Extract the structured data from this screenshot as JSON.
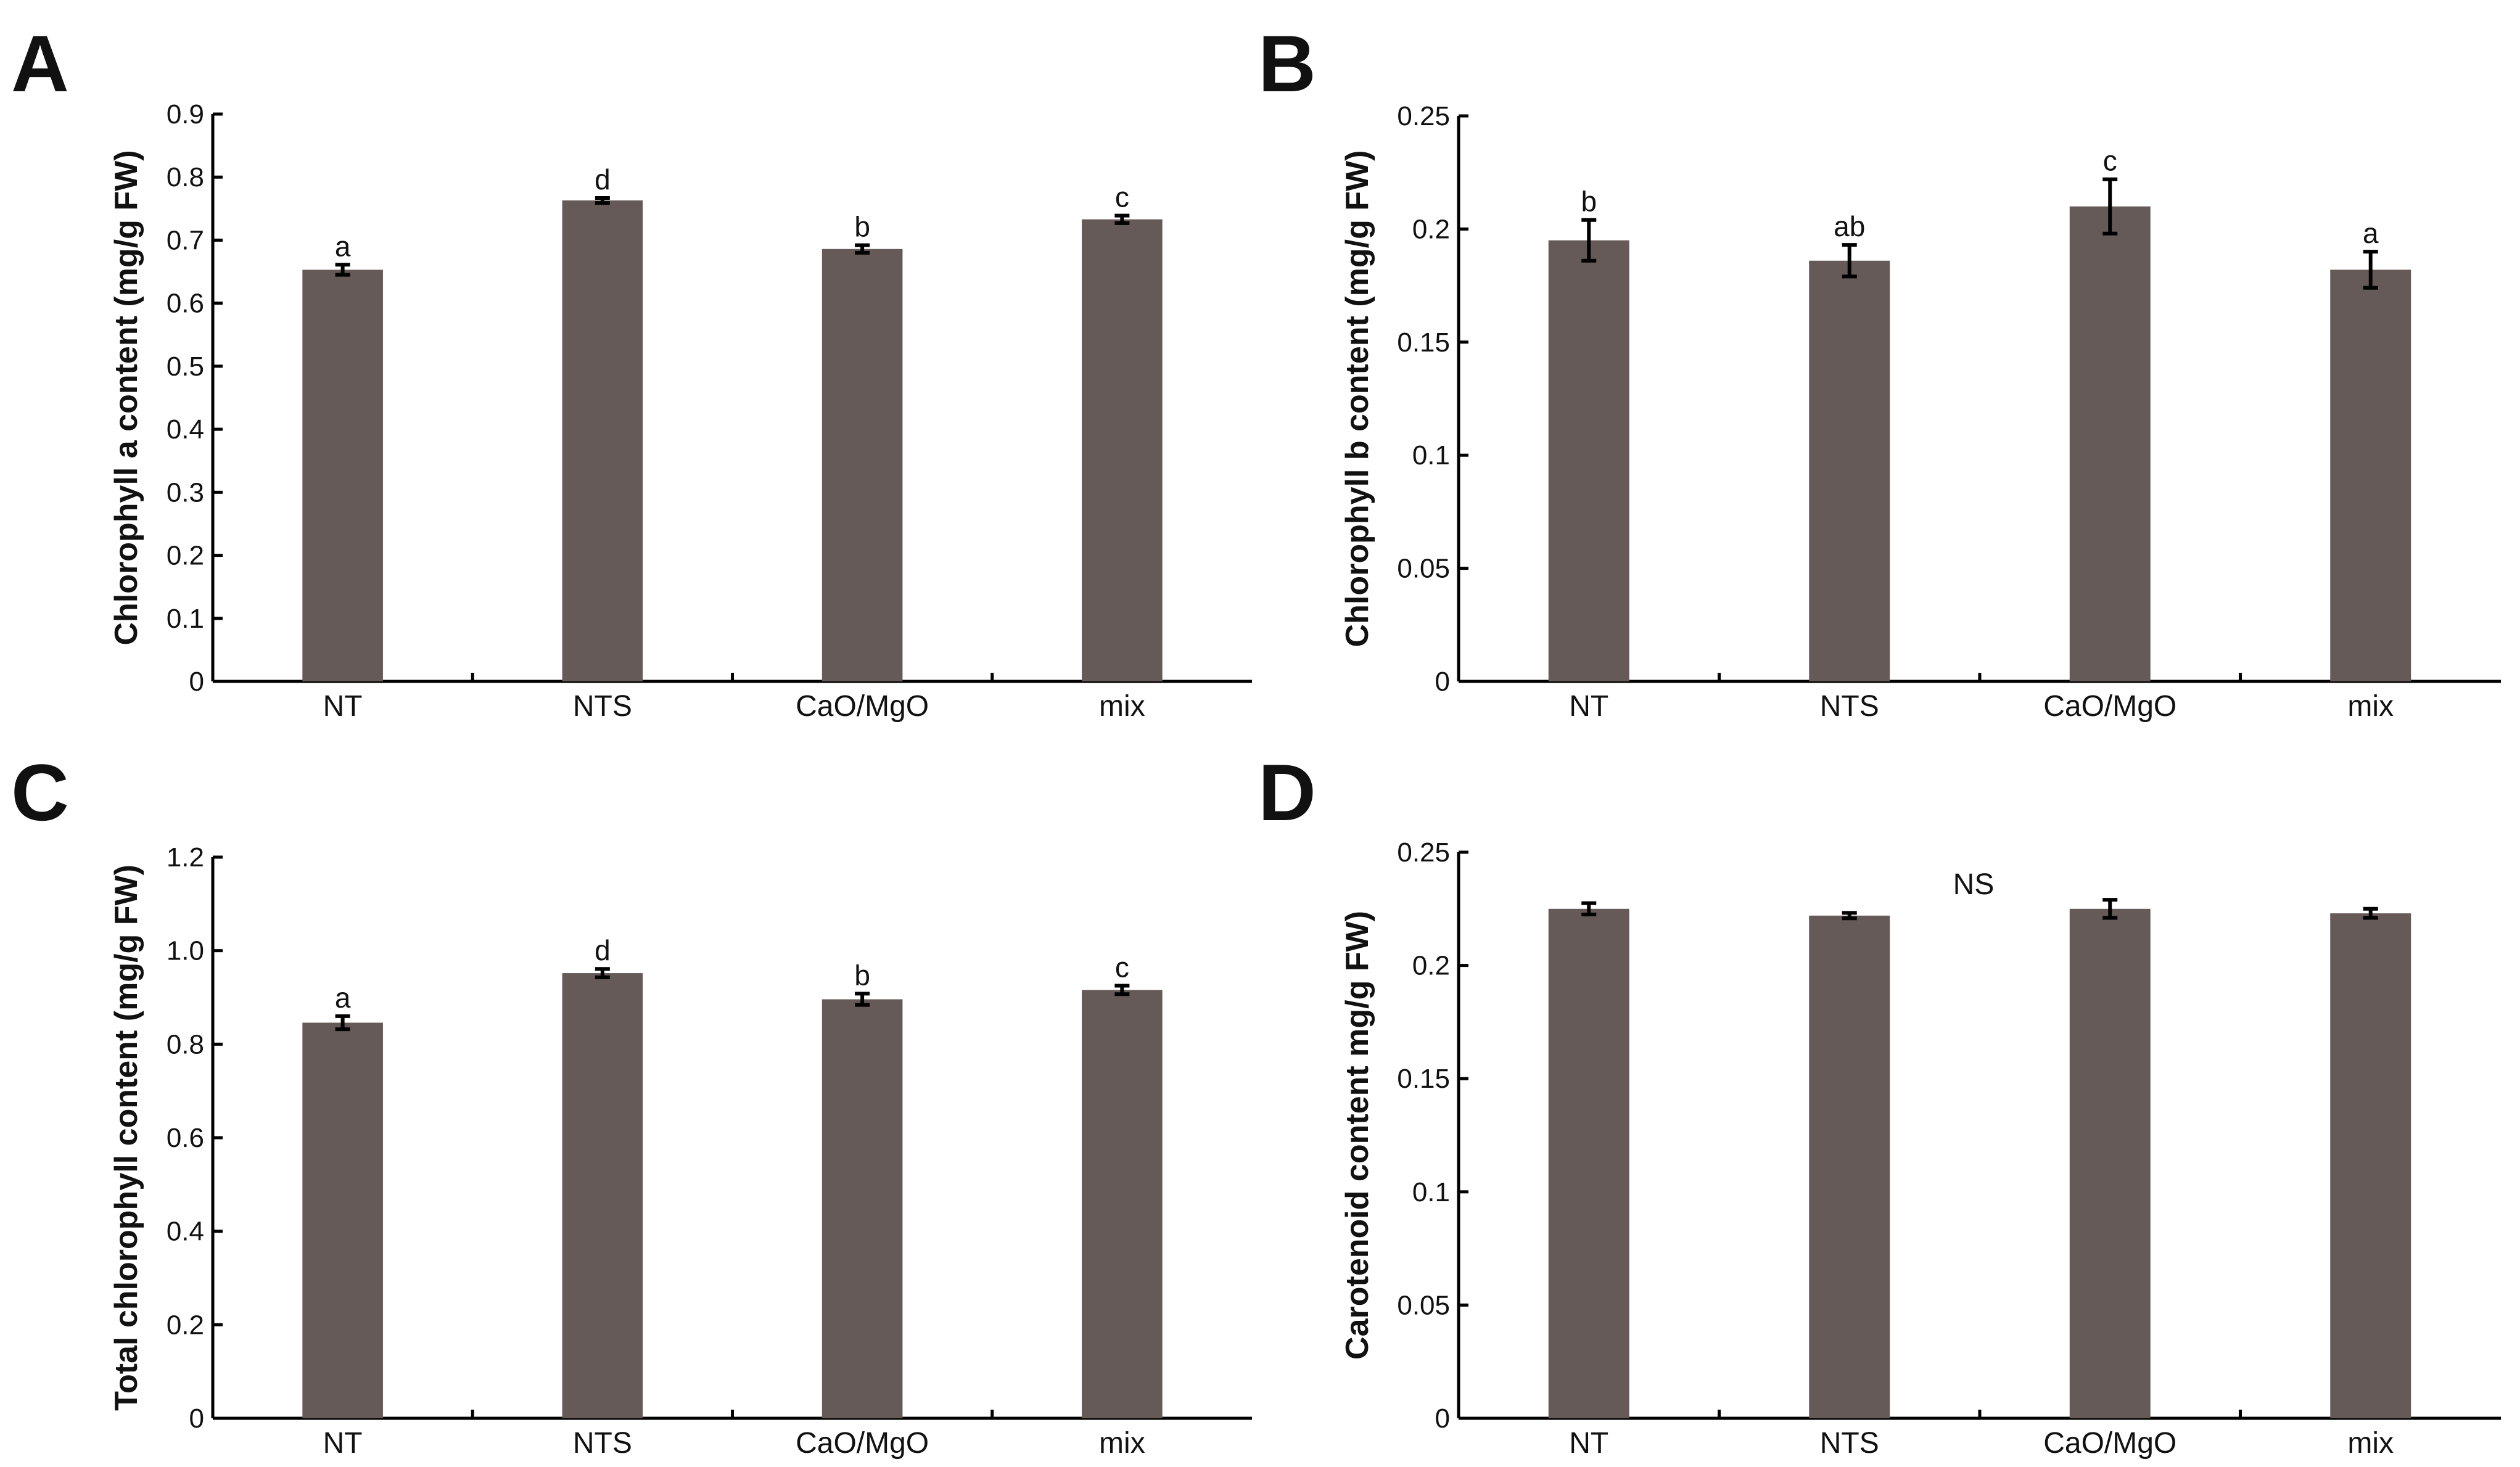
{
  "figure_labels": [
    "A",
    "B",
    "C",
    "D"
  ],
  "colors": {
    "bar": "#655a57",
    "axis": "#000000",
    "text": "#111111"
  },
  "chart_data": [
    {
      "panel": "A",
      "type": "bar",
      "categories": [
        "NT",
        "NTS",
        "CaO/MgO",
        "mix"
      ],
      "values": [
        0.653,
        0.763,
        0.686,
        0.733
      ],
      "errors": [
        0.008,
        0.004,
        0.006,
        0.006
      ],
      "significance": [
        "a",
        "d",
        "b",
        "c"
      ],
      "ylabel": "Chlorophyll a content (mg/g FW)",
      "xlabel": "",
      "ylim": [
        0,
        0.9
      ],
      "yticks": [
        0,
        0.1,
        0.2,
        0.3,
        0.4,
        0.5,
        0.6,
        0.7,
        0.8,
        0.9
      ],
      "ytick_labels": [
        "0",
        "0.1",
        "0.2",
        "0.3",
        "0.4",
        "0.5",
        "0.6",
        "0.7",
        "0.8",
        "0.9"
      ],
      "note": ""
    },
    {
      "panel": "B",
      "type": "bar",
      "categories": [
        "NT",
        "NTS",
        "CaO/MgO",
        "mix"
      ],
      "values": [
        0.195,
        0.186,
        0.21,
        0.182
      ],
      "errors": [
        0.009,
        0.007,
        0.012,
        0.008
      ],
      "significance": [
        "b",
        "ab",
        "c",
        "a"
      ],
      "ylabel": "Chlorophyll b content (mg/g FW)",
      "xlabel": "",
      "ylim": [
        0,
        0.25
      ],
      "yticks": [
        0,
        0.05,
        0.1,
        0.15,
        0.2,
        0.25
      ],
      "ytick_labels": [
        "0",
        "0.05",
        "0.1",
        "0.15",
        "0.2",
        "0.25"
      ],
      "note": ""
    },
    {
      "panel": "C",
      "type": "bar",
      "categories": [
        "NT",
        "NTS",
        "CaO/MgO",
        "mix"
      ],
      "values": [
        0.846,
        0.952,
        0.896,
        0.916
      ],
      "errors": [
        0.014,
        0.009,
        0.012,
        0.009
      ],
      "significance": [
        "a",
        "d",
        "b",
        "c"
      ],
      "ylabel": "Total chlorophyll content (mg/g FW)",
      "xlabel": "",
      "ylim": [
        0,
        1.2
      ],
      "yticks": [
        0,
        0.2,
        0.4,
        0.6,
        0.8,
        1.0,
        1.2
      ],
      "ytick_labels": [
        "0",
        "0.2",
        "0.4",
        "0.6",
        "0.8",
        "1.0",
        "1.2"
      ],
      "note": ""
    },
    {
      "panel": "D",
      "type": "bar",
      "categories": [
        "NT",
        "NTS",
        "CaO/MgO",
        "mix"
      ],
      "values": [
        0.225,
        0.222,
        0.225,
        0.223
      ],
      "errors": [
        0.0025,
        0.0012,
        0.004,
        0.002
      ],
      "significance": [
        "",
        "",
        "",
        ""
      ],
      "ylabel": "Carotenoid content mg/g FW)",
      "xlabel": "",
      "ylim": [
        0,
        0.25
      ],
      "yticks": [
        0,
        0.05,
        0.1,
        0.15,
        0.2,
        0.25
      ],
      "ytick_labels": [
        "0",
        "0.05",
        "0.1",
        "0.15",
        "0.2",
        "0.25"
      ],
      "note": "NS"
    }
  ]
}
